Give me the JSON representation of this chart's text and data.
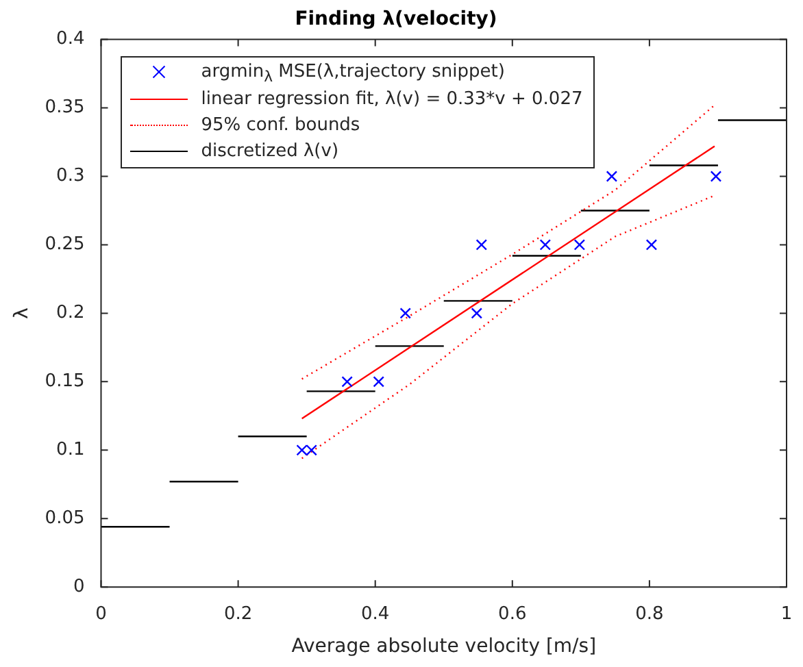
{
  "chart_data": {
    "type": "scatter",
    "title": "Finding λ(velocity)",
    "xlabel": "Average absolute velocity [m/s]",
    "ylabel": "λ",
    "xlim": [
      0,
      1
    ],
    "xticks": [
      0,
      0.2,
      0.4,
      0.6,
      0.8,
      1
    ],
    "ylim": [
      0,
      0.4
    ],
    "yticks": [
      0,
      0.05,
      0.1,
      0.15,
      0.2,
      0.25,
      0.3,
      0.35,
      0.4
    ],
    "grid": false,
    "legend": "top left",
    "series": [
      {
        "name": "argmin$_{λ}$ MSE(λ,trajectory snippet)",
        "type": "scatter",
        "color": "#0000ff",
        "marker": "cross",
        "x": [
          0.293,
          0.307,
          0.359,
          0.405,
          0.444,
          0.548,
          0.555,
          0.648,
          0.698,
          0.745,
          0.803,
          0.897
        ],
        "values": [
          0.1,
          0.1,
          0.15,
          0.15,
          0.2,
          0.2,
          0.25,
          0.25,
          0.25,
          0.3,
          0.25,
          0.3
        ]
      },
      {
        "name": "linear regression fit, λ(v) = 0.33*v + 0.027",
        "type": "line",
        "color": "#ff0000",
        "line_style": "solid",
        "marker": "none",
        "x": [
          0.293,
          0.895
        ],
        "values": [
          0.123,
          0.322
        ]
      },
      {
        "name": "95% conf. bounds",
        "type": "line",
        "color": "#ff0000",
        "line_style": "dotted",
        "marker": "none",
        "x": [
          0.293,
          0.45,
          0.6,
          0.75,
          0.895
        ],
        "values": [
          0.152,
          0.198,
          0.243,
          0.29,
          0.352
        ]
      },
      {
        "type": "line",
        "color": "#ff0000",
        "line_style": "dotted",
        "marker": "none",
        "x": [
          0.293,
          0.45,
          0.6,
          0.75,
          0.895
        ],
        "values": [
          0.094,
          0.148,
          0.207,
          0.256,
          0.286
        ]
      },
      {
        "name": "discretized λ(v)",
        "type": "line",
        "color": "#000000",
        "line_style": "solid",
        "marker": "none",
        "x": [
          0,
          0.1
        ],
        "values": [
          0.044,
          0.044
        ]
      },
      {
        "type": "line",
        "color": "#000000",
        "line_style": "solid",
        "marker": "none",
        "x": [
          0.1,
          0.2
        ],
        "values": [
          0.077,
          0.077
        ]
      },
      {
        "type": "line",
        "color": "#000000",
        "line_style": "solid",
        "marker": "none",
        "x": [
          0.2,
          0.3
        ],
        "values": [
          0.11,
          0.11
        ]
      },
      {
        "type": "line",
        "color": "#000000",
        "line_style": "solid",
        "marker": "none",
        "x": [
          0.3,
          0.4
        ],
        "values": [
          0.143,
          0.143
        ]
      },
      {
        "type": "line",
        "color": "#000000",
        "line_style": "solid",
        "marker": "none",
        "x": [
          0.4,
          0.5
        ],
        "values": [
          0.176,
          0.176
        ]
      },
      {
        "type": "line",
        "color": "#000000",
        "line_style": "solid",
        "marker": "none",
        "x": [
          0.5,
          0.6
        ],
        "values": [
          0.209,
          0.209
        ]
      },
      {
        "type": "line",
        "color": "#000000",
        "line_style": "solid",
        "marker": "none",
        "x": [
          0.6,
          0.7
        ],
        "values": [
          0.242,
          0.242
        ]
      },
      {
        "type": "line",
        "color": "#000000",
        "line_style": "solid",
        "marker": "none",
        "x": [
          0.7,
          0.8
        ],
        "values": [
          0.275,
          0.275
        ]
      },
      {
        "type": "line",
        "color": "#000000",
        "line_style": "solid",
        "marker": "none",
        "x": [
          0.8,
          0.9
        ],
        "values": [
          0.308,
          0.308
        ]
      },
      {
        "type": "line",
        "color": "#000000",
        "line_style": "solid",
        "marker": "none",
        "x": [
          0.9,
          1
        ],
        "values": [
          0.341,
          0.341
        ]
      }
    ]
  }
}
